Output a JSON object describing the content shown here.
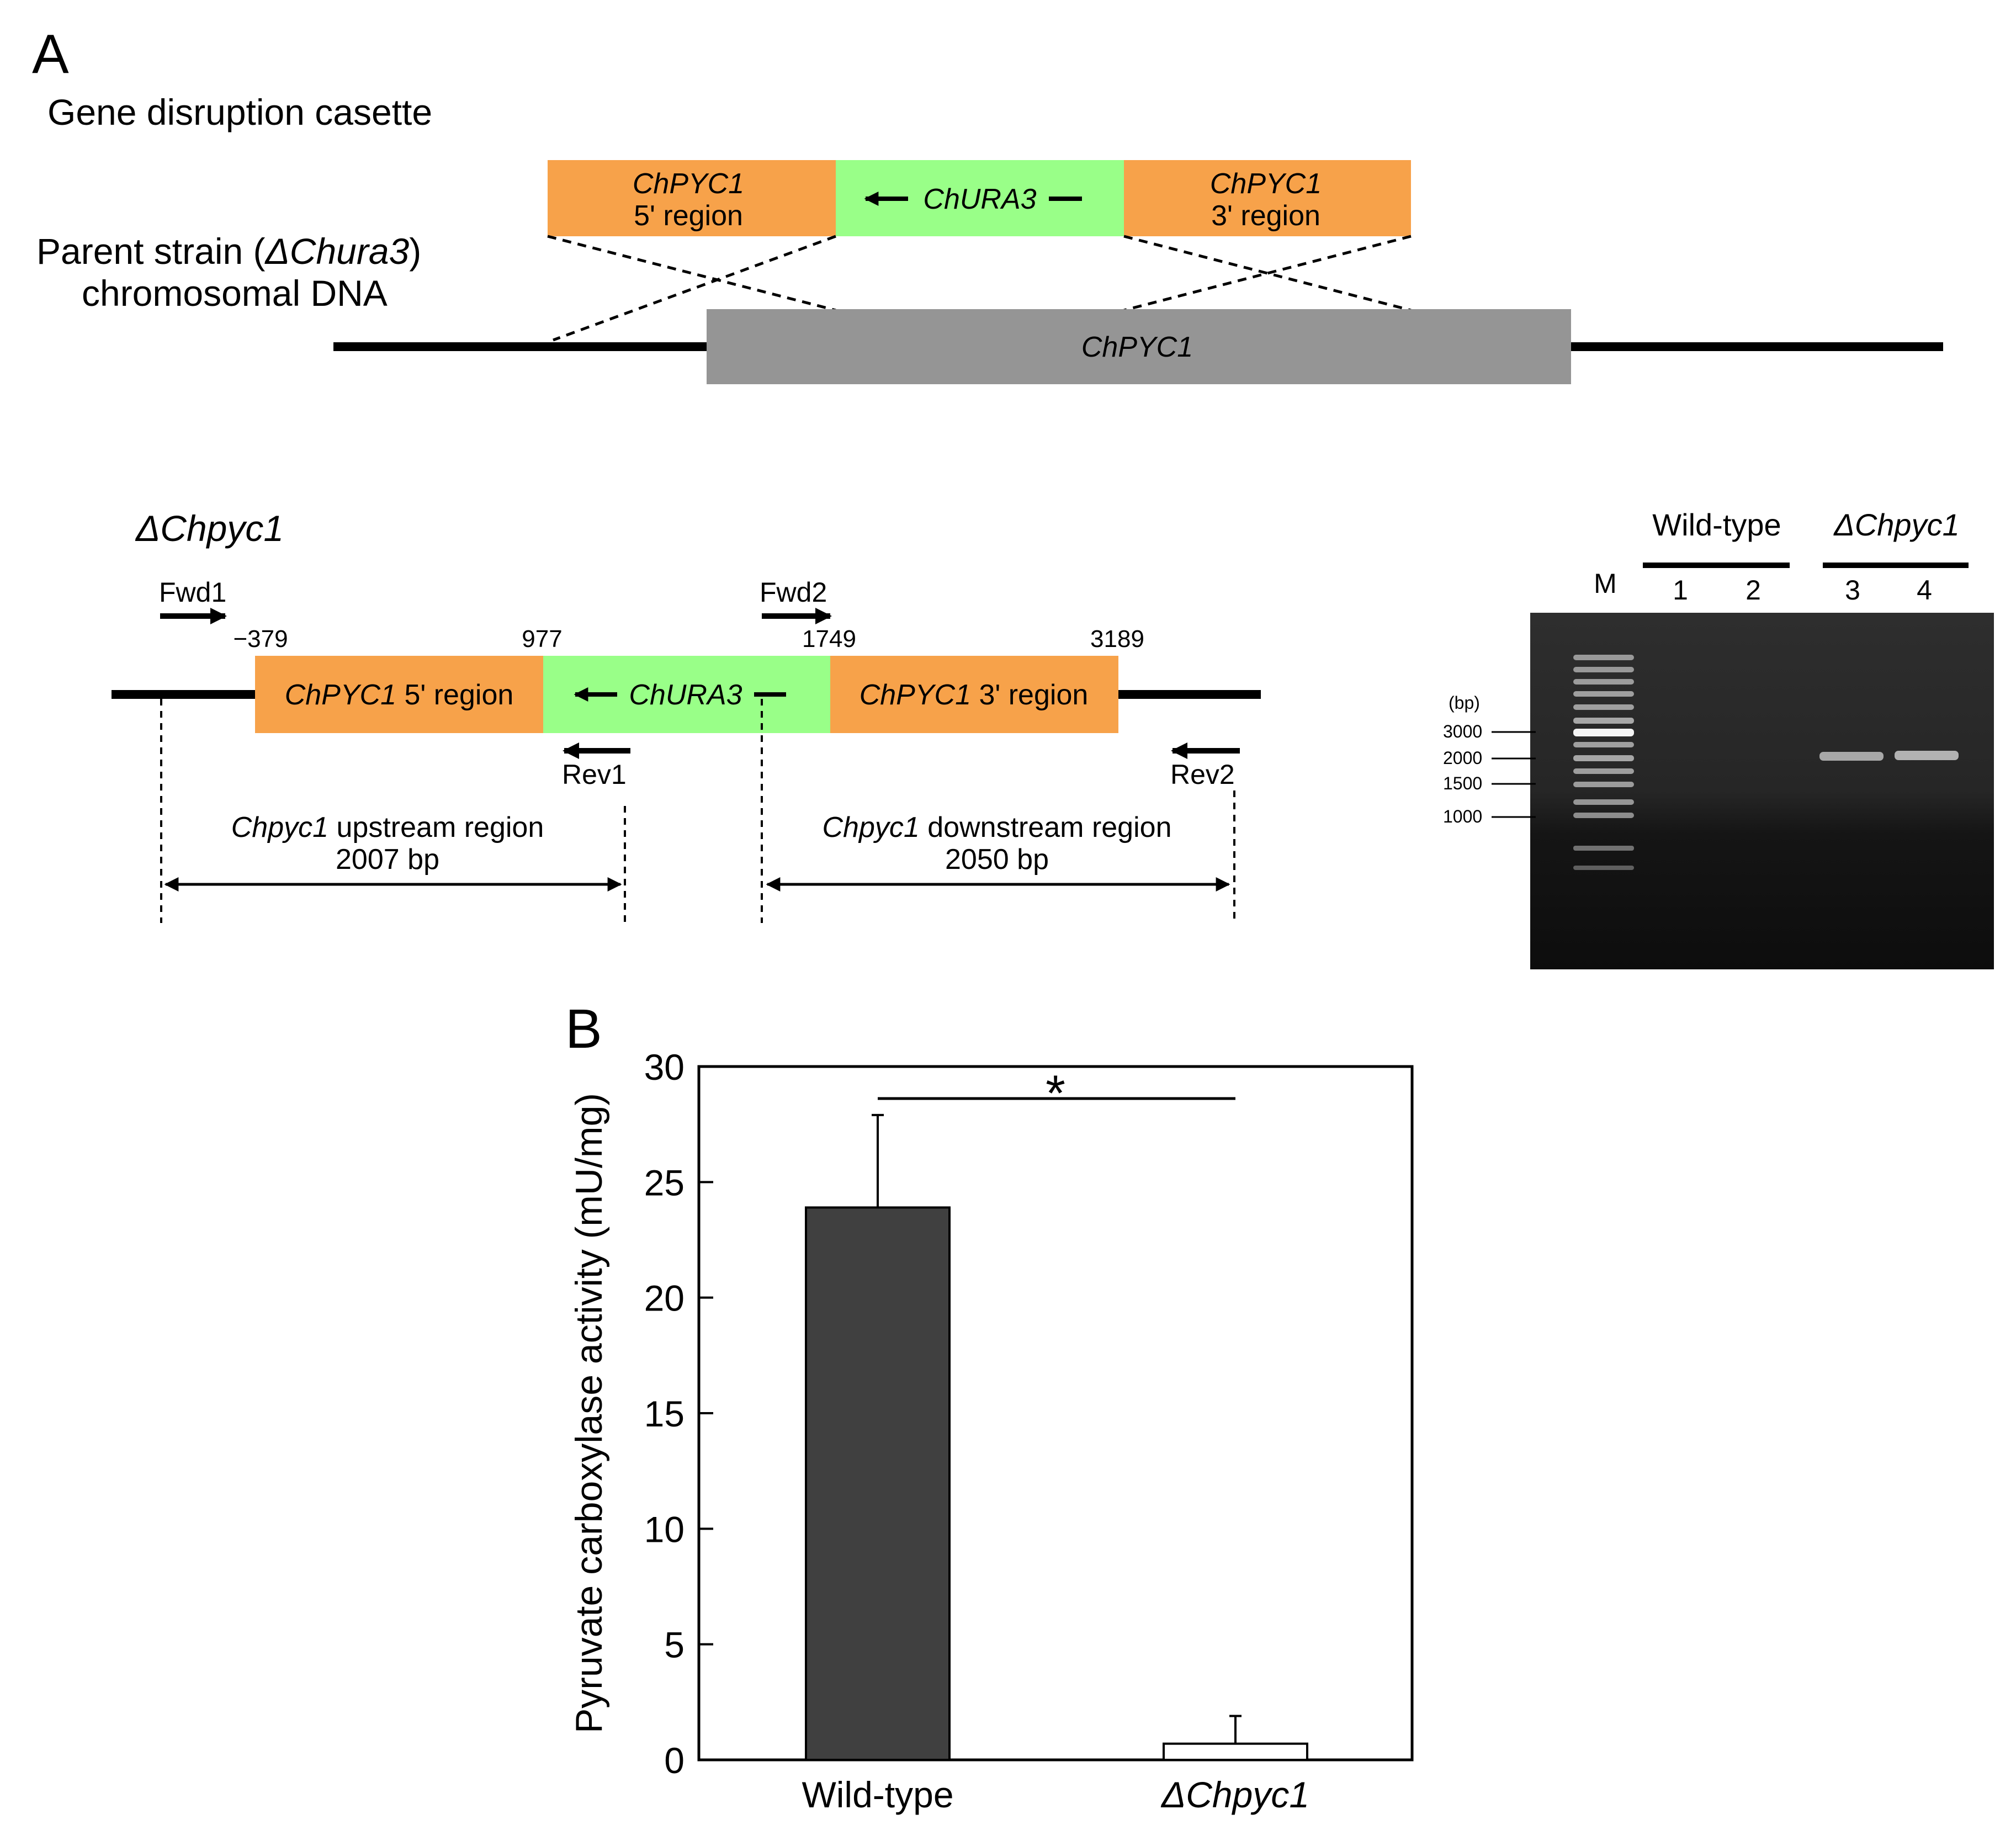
{
  "panel_a": {
    "label": "A",
    "cassette_title": "Gene disruption casette",
    "parent_line1_pre": "Parent strain (",
    "parent_line1_it": "ΔChura3",
    "parent_line1_post": ")",
    "parent_line2": "chromosomal DNA",
    "cassette": {
      "left_top": "ChPYC1",
      "left_bottom": "5' region",
      "marker": "ChURA3",
      "right_top": "ChPYC1",
      "right_bottom": "3' region"
    },
    "chromosome_gene": "ChPYC1",
    "colors": {
      "flank": "#F7A24A",
      "marker": "#99FF88",
      "gene": "#959595",
      "gel": "#141414"
    },
    "disrupted": {
      "title": "ΔChpyc1",
      "fwd1": "Fwd1",
      "fwd2": "Fwd2",
      "rev1": "Rev1",
      "rev2": "Rev2",
      "pos_1": "−379",
      "pos_2": "977",
      "pos_3": "1749",
      "pos_4": "3189",
      "seg_left_it": "ChPYC1",
      "seg_left_rest": " 5' region",
      "seg_marker": "ChURA3",
      "seg_right_it": "ChPYC1",
      "seg_right_rest": " 3' region",
      "upstream_it": "Chpyc1",
      "upstream_rest": " upstream region",
      "upstream_size": "2007 bp",
      "downstream_it": "Chpyc1",
      "downstream_rest": " downstream region",
      "downstream_size": "2050 bp"
    },
    "gel": {
      "group_wt": "Wild-type",
      "group_ko": "ΔChpyc1",
      "marker_lane": "M",
      "lanes": [
        "1",
        "2",
        "3",
        "4"
      ],
      "unit": "(bp)",
      "ladder_labels": [
        "3000",
        "2000",
        "1500",
        "1000"
      ]
    }
  },
  "panel_b": {
    "label": "B",
    "significance": "*",
    "chart_data": {
      "type": "bar",
      "categories": [
        "Wild-type",
        "ΔChpyc1"
      ],
      "values": [
        23.9,
        0.7
      ],
      "errors": [
        4.0,
        1.2
      ],
      "ylabel": "Pyruvate carboxylase activity (mU/mg)",
      "ylim": [
        0,
        30
      ],
      "yticks": [
        0,
        5,
        10,
        15,
        20,
        25,
        30
      ],
      "bar_colors": [
        "#404040",
        "#ffffff"
      ],
      "grid": false
    }
  }
}
